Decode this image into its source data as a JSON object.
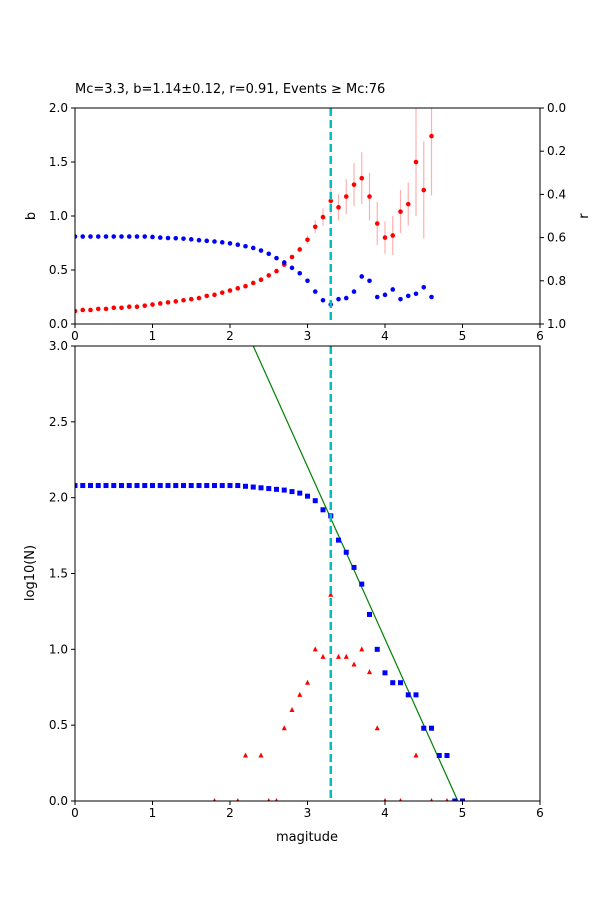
{
  "chart_data": [
    {
      "type": "scatter",
      "title": "Mc=3.3, b=1.14±0.12, r=0.91, Events ≥ Mc:76",
      "xlabel": "",
      "ylabel": "b",
      "y2label": "r",
      "xlim": [
        0,
        6
      ],
      "ylim": [
        0,
        2
      ],
      "y2lim": [
        1,
        0
      ],
      "y2_inverted": true,
      "xticks": [
        "0",
        "1",
        "2",
        "3",
        "4",
        "5",
        "6"
      ],
      "yticks": [
        "0.0",
        "0.5",
        "1.0",
        "1.5",
        "2.0"
      ],
      "y2ticks": [
        "0.0",
        "0.2",
        "0.4",
        "0.6",
        "0.8",
        "1.0"
      ],
      "mc_line": 3.3,
      "colors": {
        "b": "#ff0000",
        "b_err": "#ffb0b0",
        "r": "#0000ff",
        "mc": "#00bfbf"
      },
      "series": [
        {
          "name": "b",
          "axis": "left",
          "x": [
            0.0,
            0.1,
            0.2,
            0.3,
            0.4,
            0.5,
            0.6,
            0.7,
            0.8,
            0.9,
            1.0,
            1.1,
            1.2,
            1.3,
            1.4,
            1.5,
            1.6,
            1.7,
            1.8,
            1.9,
            2.0,
            2.1,
            2.2,
            2.3,
            2.4,
            2.5,
            2.6,
            2.7,
            2.8,
            2.9,
            3.0,
            3.1,
            3.2,
            3.3,
            3.4,
            3.5,
            3.6,
            3.7,
            3.8,
            3.9,
            4.0,
            4.1,
            4.2,
            4.3,
            4.4,
            4.5,
            4.6
          ],
          "values": [
            0.12,
            0.13,
            0.13,
            0.14,
            0.14,
            0.15,
            0.15,
            0.16,
            0.16,
            0.17,
            0.18,
            0.19,
            0.2,
            0.21,
            0.22,
            0.23,
            0.24,
            0.26,
            0.27,
            0.29,
            0.31,
            0.33,
            0.35,
            0.38,
            0.41,
            0.45,
            0.49,
            0.55,
            0.62,
            0.69,
            0.78,
            0.9,
            0.99,
            1.14,
            1.08,
            1.18,
            1.29,
            1.35,
            1.18,
            0.93,
            0.8,
            0.82,
            1.04,
            1.11,
            1.5,
            1.24,
            1.74
          ],
          "err": [
            0,
            0,
            0,
            0,
            0,
            0,
            0,
            0,
            0,
            0,
            0,
            0,
            0,
            0,
            0,
            0,
            0,
            0,
            0,
            0,
            0,
            0,
            0,
            0,
            0,
            0,
            0,
            0,
            0.01,
            0.02,
            0.04,
            0.06,
            0.08,
            0.12,
            0.12,
            0.16,
            0.2,
            0.24,
            0.22,
            0.2,
            0.15,
            0.18,
            0.2,
            0.2,
            0.5,
            0.45,
            0.55
          ]
        },
        {
          "name": "r",
          "axis": "right",
          "x": [
            0.0,
            0.1,
            0.2,
            0.3,
            0.4,
            0.5,
            0.6,
            0.7,
            0.8,
            0.9,
            1.0,
            1.1,
            1.2,
            1.3,
            1.4,
            1.5,
            1.6,
            1.7,
            1.8,
            1.9,
            2.0,
            2.1,
            2.2,
            2.3,
            2.4,
            2.5,
            2.6,
            2.7,
            2.8,
            2.9,
            3.0,
            3.1,
            3.2,
            3.3,
            3.4,
            3.5,
            3.6,
            3.7,
            3.8,
            3.9,
            4.0,
            4.1,
            4.2,
            4.3,
            4.4,
            4.5,
            4.6
          ],
          "values": [
            0.595,
            0.595,
            0.595,
            0.595,
            0.595,
            0.595,
            0.595,
            0.595,
            0.595,
            0.595,
            0.597,
            0.6,
            0.602,
            0.603,
            0.605,
            0.608,
            0.612,
            0.615,
            0.618,
            0.622,
            0.627,
            0.633,
            0.64,
            0.648,
            0.66,
            0.675,
            0.695,
            0.715,
            0.74,
            0.765,
            0.8,
            0.85,
            0.89,
            0.91,
            0.885,
            0.88,
            0.85,
            0.78,
            0.8,
            0.875,
            0.865,
            0.84,
            0.885,
            0.87,
            0.86,
            0.83,
            0.875
          ]
        }
      ]
    },
    {
      "type": "scatter",
      "title": "",
      "xlabel": "magitude",
      "ylabel": "log10(N)",
      "xlim": [
        0,
        6
      ],
      "ylim": [
        0,
        3
      ],
      "xticks": [
        "0",
        "1",
        "2",
        "3",
        "4",
        "5",
        "6"
      ],
      "yticks": [
        "0.0",
        "0.5",
        "1.0",
        "1.5",
        "2.0",
        "2.5",
        "3.0"
      ],
      "mc_line": 3.3,
      "colors": {
        "cumulative": "#0000ff",
        "noncumulative": "#ff0000",
        "fit": "#008000",
        "mc": "#00bfbf"
      },
      "series": [
        {
          "name": "cumulative",
          "marker": "square",
          "x": [
            0.0,
            0.1,
            0.2,
            0.3,
            0.4,
            0.5,
            0.6,
            0.7,
            0.8,
            0.9,
            1.0,
            1.1,
            1.2,
            1.3,
            1.4,
            1.5,
            1.6,
            1.7,
            1.8,
            1.9,
            2.0,
            2.1,
            2.2,
            2.3,
            2.4,
            2.5,
            2.6,
            2.7,
            2.8,
            2.9,
            3.0,
            3.1,
            3.2,
            3.3,
            3.4,
            3.5,
            3.6,
            3.7,
            3.8,
            3.9,
            4.0,
            4.1,
            4.2,
            4.3,
            4.4,
            4.5,
            4.6,
            4.7,
            4.8,
            4.9,
            5.0
          ],
          "values": [
            2.08,
            2.08,
            2.08,
            2.08,
            2.08,
            2.08,
            2.08,
            2.08,
            2.08,
            2.08,
            2.08,
            2.08,
            2.08,
            2.08,
            2.08,
            2.08,
            2.08,
            2.08,
            2.08,
            2.08,
            2.08,
            2.08,
            2.075,
            2.07,
            2.065,
            2.06,
            2.055,
            2.05,
            2.04,
            2.03,
            2.01,
            1.98,
            1.92,
            1.88,
            1.72,
            1.64,
            1.54,
            1.43,
            1.23,
            1.0,
            0.845,
            0.78,
            0.78,
            0.7,
            0.7,
            0.48,
            0.48,
            0.3,
            0.3,
            0.0,
            0.0
          ]
        },
        {
          "name": "noncumulative",
          "marker": "triangle",
          "x": [
            1.8,
            2.1,
            2.2,
            2.4,
            2.5,
            2.6,
            2.7,
            2.8,
            2.9,
            3.0,
            3.1,
            3.2,
            3.3,
            3.4,
            3.5,
            3.6,
            3.7,
            3.8,
            3.9,
            4.0,
            4.2,
            4.4,
            4.6,
            4.8
          ],
          "values": [
            0.0,
            0.0,
            0.3,
            0.3,
            0.0,
            0.0,
            0.48,
            0.6,
            0.7,
            0.78,
            1.0,
            0.95,
            1.36,
            0.95,
            0.95,
            0.9,
            1.0,
            0.85,
            0.48,
            0.0,
            0.0,
            0.3,
            0.0,
            0.0
          ]
        }
      ],
      "fit_line": {
        "x": [
          2.3,
          4.94
        ],
        "y": [
          3.0,
          0.0
        ]
      }
    }
  ]
}
